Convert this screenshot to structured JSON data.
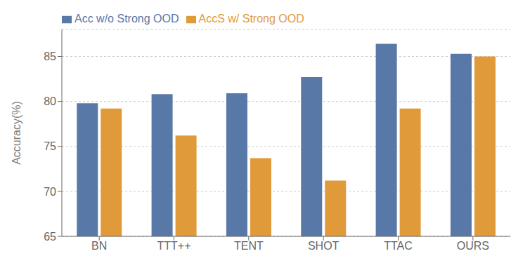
{
  "chart_data": {
    "type": "bar",
    "categories": [
      "BN",
      "TTT++",
      "TENT",
      "SHOT",
      "TTAC",
      "OURS"
    ],
    "series": [
      {
        "name": "Acc w/o Strong OOD",
        "color": "#5878a8",
        "values": [
          79.8,
          80.8,
          80.9,
          82.7,
          86.4,
          85.3
        ]
      },
      {
        "name": "AccS w/ Strong OOD",
        "color": "#e09a3a",
        "values": [
          79.2,
          76.2,
          73.7,
          71.2,
          79.2,
          85.0
        ]
      }
    ],
    "ylabel": "Accuracy(%)",
    "ylim": [
      65,
      88
    ],
    "yticks": [
      65,
      70,
      75,
      80,
      85
    ],
    "grid": true,
    "legend": "upper left"
  }
}
